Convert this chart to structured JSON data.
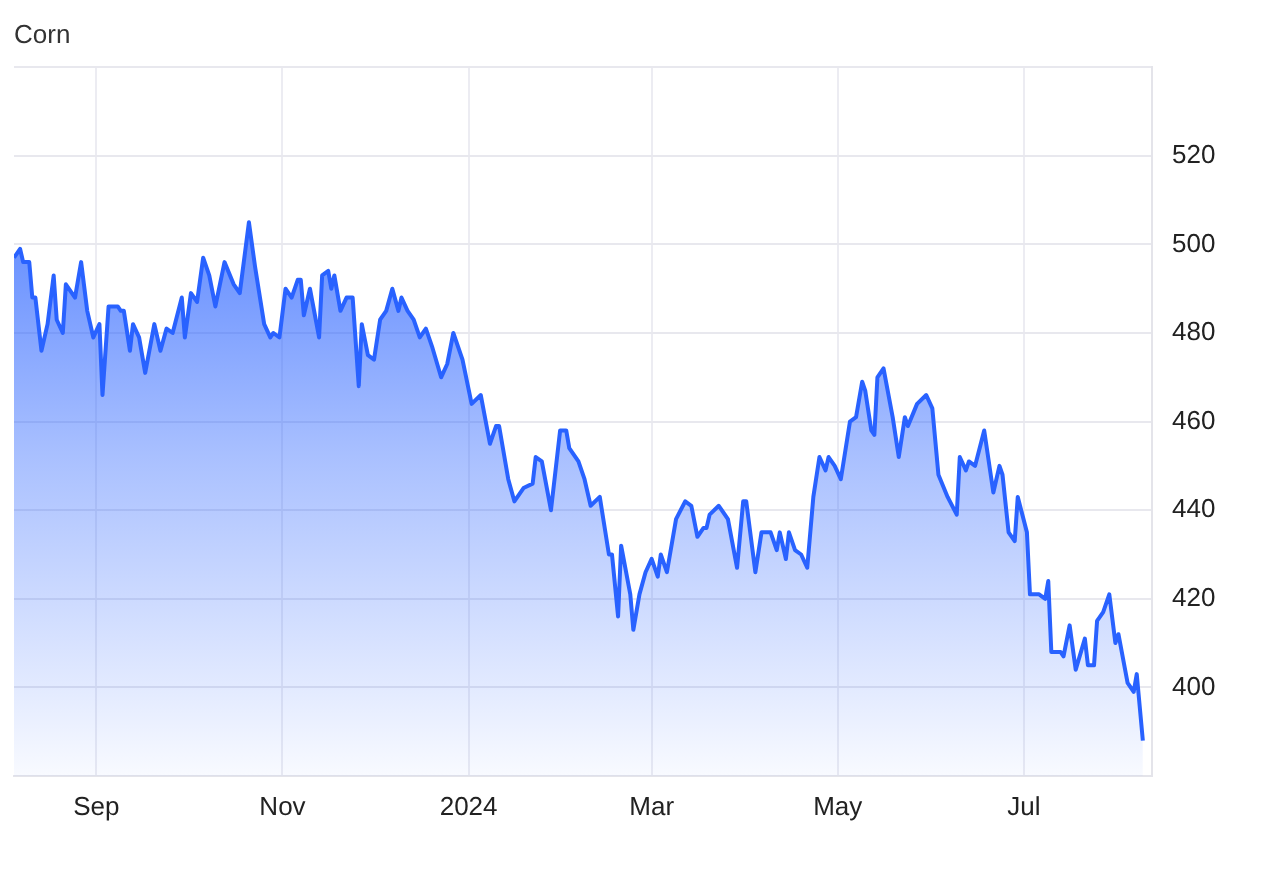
{
  "chart_data": {
    "type": "area",
    "title": "Corn",
    "x": [
      "2023-08-05",
      "2023-08-07",
      "2023-08-08",
      "2023-08-10",
      "2023-08-11",
      "2023-08-12",
      "2023-08-14",
      "2023-08-16",
      "2023-08-18",
      "2023-08-19",
      "2023-08-21",
      "2023-08-22",
      "2023-08-25",
      "2023-08-27",
      "2023-08-29",
      "2023-08-31",
      "2023-09-02",
      "2023-09-03",
      "2023-09-05",
      "2023-09-08",
      "2023-09-09",
      "2023-09-10",
      "2023-09-12",
      "2023-09-13",
      "2023-09-15",
      "2023-09-17",
      "2023-09-20",
      "2023-09-22",
      "2023-09-24",
      "2023-09-26",
      "2023-09-29",
      "2023-09-30",
      "2023-10-02",
      "2023-10-04",
      "2023-10-06",
      "2023-10-08",
      "2023-10-10",
      "2023-10-13",
      "2023-10-16",
      "2023-10-18",
      "2023-10-21",
      "2023-10-23",
      "2023-10-26",
      "2023-10-28",
      "2023-10-29",
      "2023-10-31",
      "2023-11-02",
      "2023-11-04",
      "2023-11-06",
      "2023-11-07",
      "2023-11-08",
      "2023-11-10",
      "2023-11-13",
      "2023-11-14",
      "2023-11-16",
      "2023-11-17",
      "2023-11-18",
      "2023-11-20",
      "2023-11-22",
      "2023-11-24",
      "2023-11-26",
      "2023-11-27",
      "2023-11-29",
      "2023-12-01",
      "2023-12-03",
      "2023-12-05",
      "2023-12-07",
      "2023-12-09",
      "2023-12-10",
      "2023-12-12",
      "2023-12-14",
      "2023-12-16",
      "2023-12-18",
      "2023-12-20",
      "2023-12-23",
      "2023-12-25",
      "2023-12-27",
      "2023-12-30",
      "2024-01-02",
      "2024-01-05",
      "2024-01-08",
      "2024-01-10",
      "2024-01-11",
      "2024-01-14",
      "2024-01-16",
      "2024-01-19",
      "2024-01-22",
      "2024-01-23",
      "2024-01-25",
      "2024-01-28",
      "2024-01-31",
      "2024-02-02",
      "2024-02-03",
      "2024-02-06",
      "2024-02-08",
      "2024-02-10",
      "2024-02-13",
      "2024-02-16",
      "2024-02-17",
      "2024-02-19",
      "2024-02-20",
      "2024-02-23",
      "2024-02-24",
      "2024-02-26",
      "2024-02-28",
      "2024-03-01",
      "2024-03-03",
      "2024-03-04",
      "2024-03-06",
      "2024-03-09",
      "2024-03-12",
      "2024-03-14",
      "2024-03-16",
      "2024-03-18",
      "2024-03-19",
      "2024-03-20",
      "2024-03-23",
      "2024-03-26",
      "2024-03-29",
      "2024-03-31",
      "2024-04-01",
      "2024-04-04",
      "2024-04-06",
      "2024-04-09",
      "2024-04-11",
      "2024-04-12",
      "2024-04-14",
      "2024-04-15",
      "2024-04-17",
      "2024-04-19",
      "2024-04-21",
      "2024-04-23",
      "2024-04-25",
      "2024-04-27",
      "2024-04-28",
      "2024-04-30",
      "2024-05-02",
      "2024-05-05",
      "2024-05-07",
      "2024-05-09",
      "2024-05-10",
      "2024-05-12",
      "2024-05-13",
      "2024-05-14",
      "2024-05-16",
      "2024-05-19",
      "2024-05-21",
      "2024-05-23",
      "2024-05-24",
      "2024-05-27",
      "2024-05-30",
      "2024-06-01",
      "2024-06-03",
      "2024-06-06",
      "2024-06-09",
      "2024-06-10",
      "2024-06-12",
      "2024-06-13",
      "2024-06-15",
      "2024-06-18",
      "2024-06-21",
      "2024-06-23",
      "2024-06-24",
      "2024-06-26",
      "2024-06-28",
      "2024-06-29",
      "2024-07-02",
      "2024-07-03",
      "2024-07-06",
      "2024-07-08",
      "2024-07-09",
      "2024-07-10",
      "2024-07-13",
      "2024-07-14",
      "2024-07-16",
      "2024-07-18",
      "2024-07-21",
      "2024-07-22",
      "2024-07-24",
      "2024-07-25",
      "2024-07-27",
      "2024-07-29",
      "2024-07-31",
      "2024-08-01",
      "2024-08-04",
      "2024-08-06",
      "2024-08-07",
      "2024-08-09"
    ],
    "series": [
      {
        "color": "#2962ff",
        "values": [
          497,
          499,
          496,
          496,
          488,
          488,
          476,
          482,
          493,
          483,
          480,
          491,
          488,
          496,
          485,
          479,
          482,
          466,
          486,
          486,
          485,
          485,
          476,
          482,
          479,
          471,
          482,
          476,
          481,
          480,
          488,
          479,
          489,
          487,
          497,
          493,
          486,
          496,
          491,
          489,
          505,
          495,
          482,
          479,
          480,
          479,
          490,
          488,
          492,
          492,
          484,
          490,
          479,
          493,
          494,
          490,
          493,
          485,
          488,
          488,
          468,
          482,
          475,
          474,
          483,
          485,
          490,
          485,
          488,
          485,
          483,
          479,
          481,
          477,
          470,
          473,
          480,
          474,
          464,
          466,
          455,
          459,
          459,
          447,
          442,
          445,
          446,
          452,
          451,
          440,
          458,
          458,
          454,
          451,
          447,
          441,
          443,
          430,
          430,
          416,
          432,
          421,
          413,
          421,
          426,
          429,
          425,
          430,
          426,
          438,
          442,
          441,
          434,
          436,
          436,
          439,
          441,
          438,
          427,
          442,
          442,
          426,
          435,
          435,
          431,
          435,
          429,
          435,
          431,
          430,
          427,
          443,
          452,
          449,
          452,
          450,
          447,
          460,
          461,
          469,
          467,
          458,
          457,
          470,
          472,
          461,
          452,
          461,
          459,
          464,
          466,
          463,
          448,
          443,
          439,
          452,
          449,
          451,
          450,
          458,
          444,
          450,
          448,
          435,
          433,
          443,
          435,
          421,
          421,
          420,
          424,
          408,
          408,
          407,
          414,
          404,
          411,
          405,
          405,
          415,
          417,
          421,
          410,
          412,
          401,
          399,
          403,
          388
        ]
      }
    ],
    "xlim": [
      "2023-08-05",
      "2024-08-12"
    ],
    "xticks": [
      {
        "value": "2023-09-01",
        "label": "Sep"
      },
      {
        "value": "2023-11-01",
        "label": "Nov"
      },
      {
        "value": "2024-01-01",
        "label": "2024"
      },
      {
        "value": "2024-03-01",
        "label": "Mar"
      },
      {
        "value": "2024-05-01",
        "label": "May"
      },
      {
        "value": "2024-07-01",
        "label": "Jul"
      }
    ],
    "ylim": [
      380,
      540
    ],
    "yticks": [
      {
        "value": 380,
        "label": null
      },
      400,
      420,
      440,
      460,
      480,
      500,
      520,
      {
        "value": 540,
        "label": null
      }
    ],
    "grid": true,
    "legend": false,
    "marker": "none"
  }
}
